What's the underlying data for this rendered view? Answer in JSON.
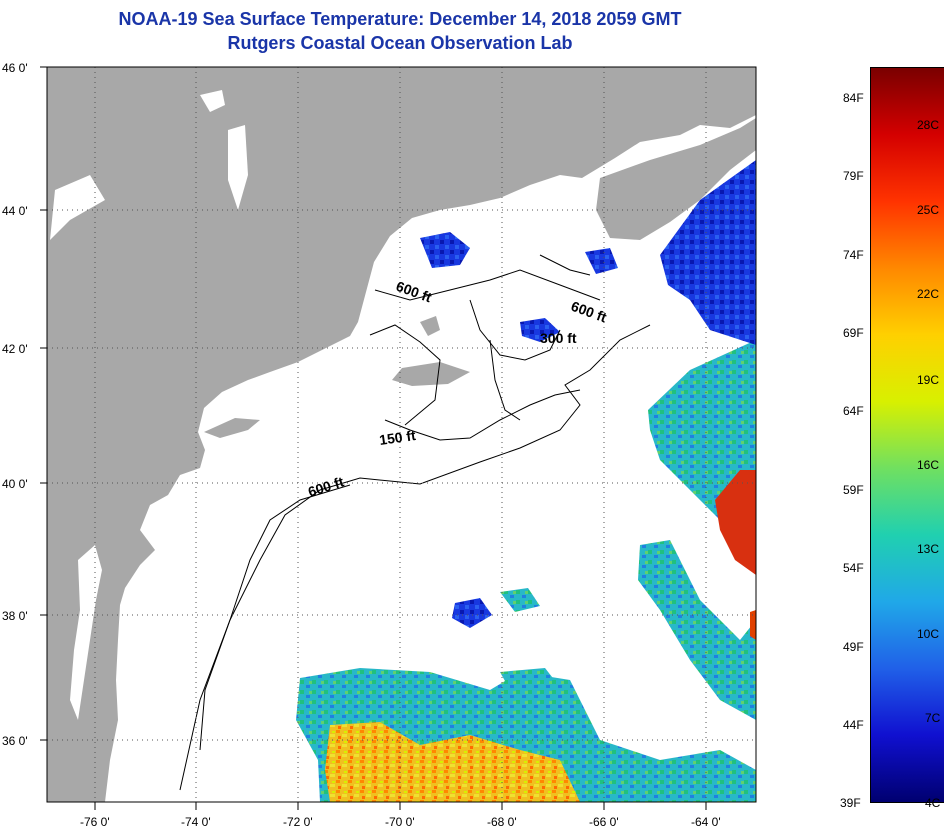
{
  "title": "NOAA-19 Sea Surface Temperature:  December 14, 2018 2059 GMT",
  "subtitle": "Rutgers Coastal Ocean Observation Lab",
  "map": {
    "lon_range": [
      -77,
      -63
    ],
    "lat_range": [
      35,
      46
    ],
    "lon_ticks": [
      "-76 0'",
      "-74 0'",
      "-72 0'",
      "-70 0'",
      "-68 0'",
      "-66 0'",
      "-64 0'"
    ],
    "lat_ticks": [
      "46 0'",
      "44 0'",
      "42 0'",
      "40 0'",
      "38 0'",
      "36 0'"
    ],
    "contour_labels": [
      "600 ft",
      "600 ft",
      "300 ft",
      "150 ft",
      "600 ft"
    ],
    "colors": {
      "land": "#a8a8a8",
      "ocean_nodata": "#ffffff",
      "contour": "#000000",
      "grid": "#555555"
    }
  },
  "colorbar": {
    "fahrenheit": [
      "84F",
      "79F",
      "74F",
      "69F",
      "64F",
      "59F",
      "54F",
      "49F",
      "44F",
      "39F"
    ],
    "celsius": [
      "28C",
      "25C",
      "22C",
      "19C",
      "16C",
      "13C",
      "10C",
      "7C",
      "4C"
    ],
    "colors": [
      "#7a0000",
      "#d40000",
      "#ff3300",
      "#ff8800",
      "#ffd000",
      "#d8f000",
      "#70e060",
      "#20d0b0",
      "#20a8e8",
      "#2060e8",
      "#1010d0",
      "#000070"
    ]
  }
}
